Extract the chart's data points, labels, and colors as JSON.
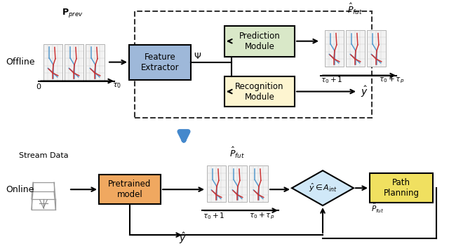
{
  "bg_color": "#ffffff",
  "offline_label": "Offline",
  "online_label": "Online",
  "p_prev_label": "$\\mathbf{P}_{prev}$",
  "p_fut_label_top": "$\\hat{P}_{fut}$",
  "p_fut_label_bottom": "$\\hat{P}_{fut}$",
  "feature_extractor_label": "Feature\nExtractor",
  "prediction_module_label": "Prediction\nModule",
  "recognition_module_label": "Recognition\nModule",
  "pretrained_model_label": "Pretrained\nmodel",
  "path_planning_label": "Path\nPlanning",
  "diamond_label": "$\\hat{y} \\in A_{int}$",
  "psi_label": "$\\Psi$",
  "y_hat_label_top": "$\\hat{y}$",
  "y_hat_label_bottom": "$\\hat{y}$",
  "p_fut_bottom_label": "$\\hat{P}_{fut}$",
  "stream_data_label": "Stream Data",
  "tau0_label": "$\\tau_0$",
  "zero_label": "$0$",
  "tau0_plus1_top": "$\\tau_0+1$",
  "tau0_plus_taup_top": "$\\tau_0+\\tau_p$",
  "tau0_plus1_bottom": "$\\tau_0+1$",
  "tau0_plus_taup_bottom": "$\\tau_0+\\tau_p$",
  "feature_box_color": "#9eb8d9",
  "prediction_box_color": "#d9e8c8",
  "recognition_box_color": "#fdf5d0",
  "pretrained_box_color": "#f0a860",
  "path_planning_box_color": "#f0e060",
  "diamond_box_color": "#d0e8f8",
  "arrow_color": "#111111",
  "big_arrow_color": "#4488cc",
  "grid_color": "#cccccc",
  "skeleton_blue": "#5599cc",
  "skeleton_red": "#cc3333"
}
